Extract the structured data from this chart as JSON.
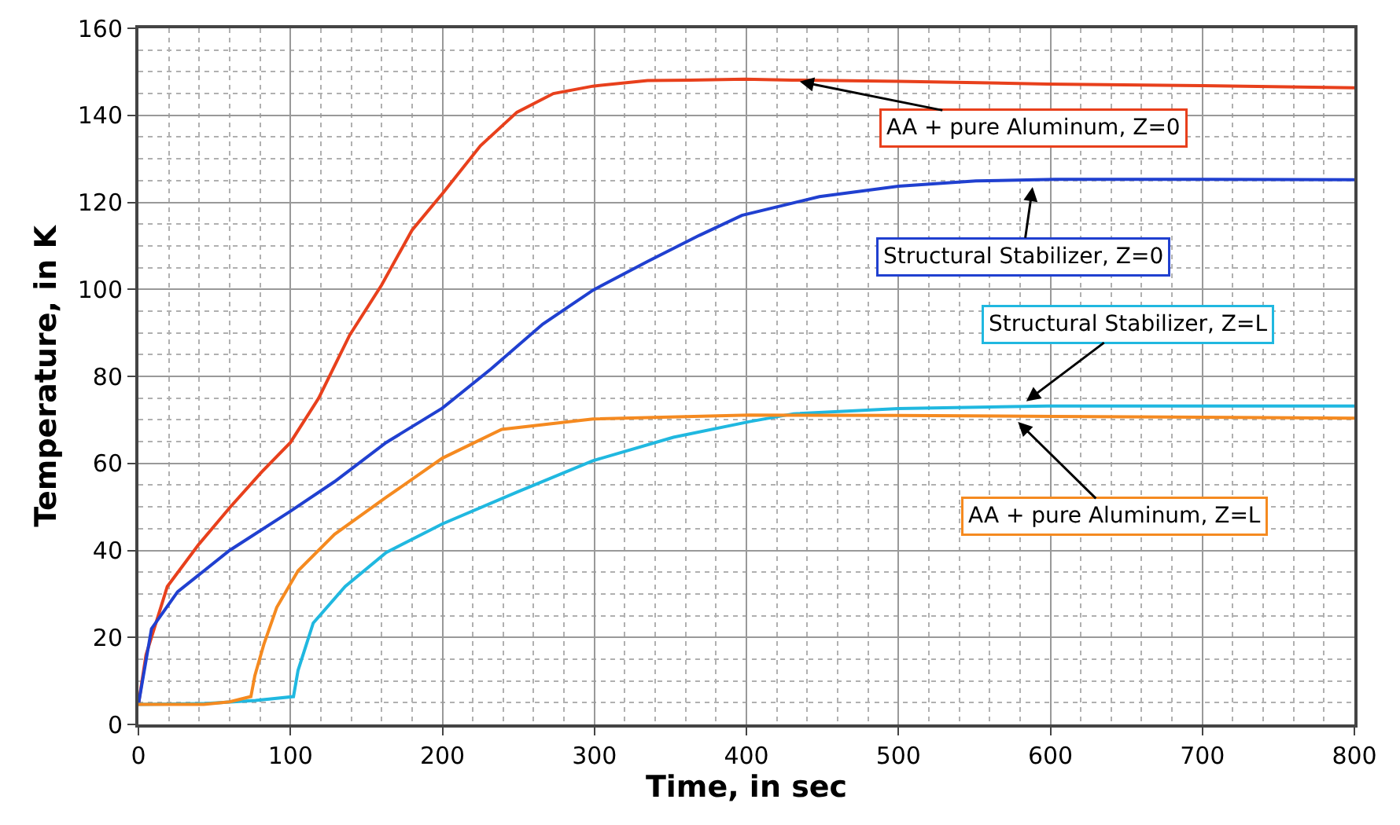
{
  "chart_data": {
    "type": "line",
    "xlabel": "Time, in sec",
    "ylabel": "Temperature, in K",
    "xlim": [
      0,
      800
    ],
    "xticks": [
      0,
      100,
      200,
      300,
      400,
      500,
      600,
      700,
      800
    ],
    "ylim": [
      0,
      160
    ],
    "yticks": [
      0,
      20,
      40,
      60,
      80,
      100,
      120,
      140,
      160
    ],
    "grid": true,
    "marker": "none",
    "line_style": "solid",
    "series": [
      {
        "color": "#e8401c",
        "x": [
          0,
          5,
          19,
          39.5,
          60,
          81,
          100,
          118.6,
          139,
          160,
          180,
          200,
          225,
          249,
          273,
          299,
          335,
          363,
          399,
          430,
          500,
          598,
          700,
          800
        ],
        "values": [
          4.6,
          16,
          31.7,
          41.3,
          49.8,
          58,
          64.8,
          75,
          89.5,
          101,
          113.6,
          122,
          133,
          140.7,
          145,
          146.7,
          148,
          148.1,
          148.3,
          148.1,
          147.8,
          147.2,
          146.8,
          146.3
        ]
      },
      {
        "color": "#2040d0",
        "x": [
          0,
          8.6,
          25.8,
          60,
          100,
          129,
          163,
          200,
          232,
          266,
          299,
          335,
          369,
          397,
          448,
          500,
          551,
          603,
          700,
          800
        ],
        "values": [
          4.6,
          22,
          30.5,
          40,
          49,
          55.8,
          64.8,
          72.7,
          81.7,
          92,
          99.8,
          106.4,
          112.4,
          117,
          121.3,
          123.7,
          124.9,
          125.3,
          125.3,
          125.2
        ]
      },
      {
        "color": "#20b8e0",
        "x": [
          0,
          43,
          77,
          102,
          105,
          115,
          136,
          163,
          200,
          249,
          299,
          352,
          402,
          431,
          500,
          598,
          700,
          800
        ],
        "values": [
          4.6,
          4.8,
          5.5,
          6.4,
          12.4,
          23.3,
          31.7,
          39.5,
          46.1,
          53.4,
          60.6,
          66,
          69.6,
          71.4,
          72.6,
          73.2,
          73.2,
          73.2
        ]
      },
      {
        "color": "#f58a20",
        "x": [
          0,
          43,
          60,
          74,
          76.6,
          82.5,
          91,
          105,
          129,
          163,
          200,
          239,
          299,
          402,
          500,
          603,
          700,
          800
        ],
        "values": [
          4.6,
          4.6,
          5.2,
          6.4,
          11.2,
          18.4,
          26.9,
          35.3,
          43.7,
          52.2,
          61.2,
          67.8,
          70.2,
          71.1,
          71,
          70.8,
          70.6,
          70.4
        ]
      }
    ],
    "annotations": [
      {
        "text": "AA + pure Aluminum, Z=0",
        "x": 430,
        "y": 148.1
      },
      {
        "text": "Structural Stabilizer, Z=0",
        "x": 589,
        "y": 125.3
      },
      {
        "text": "Structural Stabilizer, Z=L",
        "x": 580,
        "y": 73.2
      },
      {
        "text": "AA + pure Aluminum, Z=L",
        "x": 575,
        "y": 70.8
      }
    ]
  }
}
